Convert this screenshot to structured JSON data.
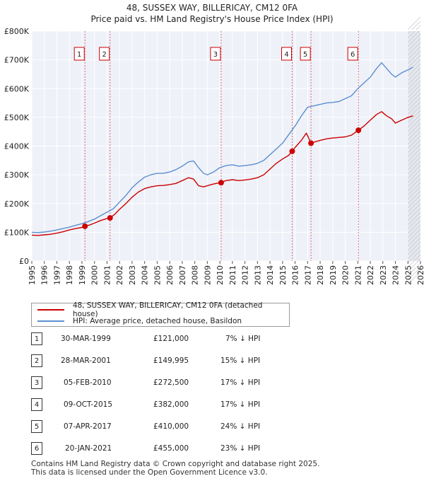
{
  "chart_data": {
    "type": "line",
    "title": "48, SUSSEX WAY, BILLERICAY, CM12 0FA",
    "subtitle": "Price paid vs. HM Land Registry's House Price Index (HPI)",
    "xlabel": "",
    "ylabel": "",
    "xlim": [
      1995,
      2026
    ],
    "ylim": [
      0,
      800000
    ],
    "y_ticks": [
      0,
      100000,
      200000,
      300000,
      400000,
      500000,
      600000,
      700000,
      800000
    ],
    "y_tick_labels": [
      "£0",
      "£100K",
      "£200K",
      "£300K",
      "£400K",
      "£500K",
      "£600K",
      "£700K",
      "£800K"
    ],
    "x_ticks": [
      1995,
      1996,
      1997,
      1998,
      1999,
      2000,
      2001,
      2002,
      2003,
      2004,
      2005,
      2006,
      2007,
      2008,
      2009,
      2010,
      2011,
      2012,
      2013,
      2014,
      2015,
      2016,
      2017,
      2018,
      2019,
      2020,
      2021,
      2022,
      2023,
      2024,
      2025,
      2026
    ],
    "x_tick_labels": [
      "1995",
      "1996",
      "1997",
      "1998",
      "1999",
      "2000",
      "2001",
      "2002",
      "2003",
      "2004",
      "2005",
      "2006",
      "2007",
      "2008",
      "2009",
      "2010",
      "2011",
      "2012",
      "2013",
      "2014",
      "2015",
      "2016",
      "2017",
      "2018",
      "2019",
      "2020",
      "2021",
      "2022",
      "2023",
      "2024",
      "2025",
      "2026"
    ],
    "grid": true,
    "series": [
      {
        "name": "48, SUSSEX WAY, BILLERICAY, CM12 0FA (detached house)",
        "color": "#cc0000",
        "x": [
          1995.0,
          1995.5,
          1996.0,
          1996.5,
          1997.0,
          1997.5,
          1998.0,
          1998.5,
          1999.0,
          1999.24,
          1999.6,
          2000.0,
          2000.5,
          2001.0,
          2001.24,
          2001.6,
          2002.0,
          2002.5,
          2003.0,
          2003.5,
          2004.0,
          2004.5,
          2005.0,
          2005.5,
          2006.0,
          2006.5,
          2007.0,
          2007.5,
          2007.9,
          2008.3,
          2008.7,
          2009.0,
          2009.5,
          2010.0,
          2010.1,
          2010.5,
          2011.0,
          2011.5,
          2012.0,
          2012.5,
          2013.0,
          2013.5,
          2014.0,
          2014.5,
          2015.0,
          2015.5,
          2015.77,
          2016.0,
          2016.5,
          2016.9,
          2017.27,
          2017.6,
          2018.0,
          2018.5,
          2019.0,
          2019.5,
          2020.0,
          2020.5,
          2021.05,
          2021.5,
          2022.0,
          2022.5,
          2022.9,
          2023.3,
          2023.7,
          2024.0,
          2024.5,
          2025.0,
          2025.4
        ],
        "values": [
          90000,
          89000,
          91000,
          93000,
          97000,
          102000,
          108000,
          113000,
          117000,
          121000,
          125000,
          132000,
          141000,
          148000,
          149995,
          162000,
          180000,
          200000,
          222000,
          240000,
          252000,
          258000,
          262000,
          263000,
          266000,
          270000,
          280000,
          290000,
          285000,
          262000,
          258000,
          262000,
          268000,
          272500,
          274000,
          280000,
          283000,
          280000,
          282000,
          285000,
          290000,
          300000,
          320000,
          340000,
          355000,
          368000,
          382000,
          395000,
          420000,
          445000,
          410000,
          415000,
          420000,
          425000,
          428000,
          430000,
          432000,
          438000,
          455000,
          470000,
          490000,
          510000,
          520000,
          505000,
          495000,
          480000,
          490000,
          500000,
          505000
        ]
      },
      {
        "name": "HPI: Average price, detached house, Basildon",
        "color": "#5b8fd0",
        "x": [
          1995.0,
          1995.5,
          1996.0,
          1996.5,
          1997.0,
          1997.5,
          1998.0,
          1998.5,
          1999.0,
          1999.5,
          2000.0,
          2000.5,
          2001.0,
          2001.5,
          2002.0,
          2002.5,
          2003.0,
          2003.5,
          2004.0,
          2004.5,
          2005.0,
          2005.5,
          2006.0,
          2006.5,
          2007.0,
          2007.5,
          2007.9,
          2008.3,
          2008.7,
          2009.0,
          2009.5,
          2010.0,
          2010.5,
          2011.0,
          2011.5,
          2012.0,
          2012.5,
          2013.0,
          2013.5,
          2014.0,
          2014.5,
          2015.0,
          2015.5,
          2016.0,
          2016.5,
          2017.0,
          2017.5,
          2018.0,
          2018.5,
          2019.0,
          2019.5,
          2020.0,
          2020.5,
          2021.0,
          2021.5,
          2022.0,
          2022.5,
          2022.9,
          2023.3,
          2023.7,
          2024.0,
          2024.5,
          2025.0,
          2025.4
        ],
        "values": [
          100000,
          99000,
          101000,
          104000,
          108000,
          113000,
          118000,
          124000,
          130000,
          137000,
          146000,
          158000,
          170000,
          182000,
          205000,
          228000,
          255000,
          275000,
          292000,
          300000,
          305000,
          305000,
          310000,
          318000,
          330000,
          345000,
          348000,
          325000,
          305000,
          300000,
          310000,
          325000,
          332000,
          335000,
          330000,
          332000,
          335000,
          340000,
          350000,
          370000,
          390000,
          410000,
          440000,
          470000,
          505000,
          535000,
          540000,
          545000,
          550000,
          552000,
          555000,
          565000,
          575000,
          600000,
          620000,
          640000,
          670000,
          690000,
          670000,
          650000,
          640000,
          655000,
          665000,
          675000
        ]
      }
    ],
    "sale_markers": [
      {
        "label": "1",
        "x": 1999.24,
        "value": 121000
      },
      {
        "label": "2",
        "x": 2001.24,
        "value": 149995
      },
      {
        "label": "3",
        "x": 2010.1,
        "value": 272500
      },
      {
        "label": "4",
        "x": 2015.77,
        "value": 382000
      },
      {
        "label": "5",
        "x": 2017.27,
        "value": 410000
      },
      {
        "label": "6",
        "x": 2021.05,
        "value": 455000
      }
    ],
    "shaded_region": {
      "from": 2025.0,
      "to": 2026.0,
      "pattern": "hatched"
    }
  },
  "legend": {
    "property_label": "48, SUSSEX WAY, BILLERICAY, CM12 0FA (detached house)",
    "hpi_label": "HPI: Average price, detached house, Basildon",
    "property_color": "#cc0000",
    "hpi_color": "#5b8fd0"
  },
  "sales": [
    {
      "num": "1",
      "date": "30-MAR-1999",
      "price": "£121,000",
      "hpi": "7% ↓ HPI"
    },
    {
      "num": "2",
      "date": "28-MAR-2001",
      "price": "£149,995",
      "hpi": "15% ↓ HPI"
    },
    {
      "num": "3",
      "date": "05-FEB-2010",
      "price": "£272,500",
      "hpi": "17% ↓ HPI"
    },
    {
      "num": "4",
      "date": "09-OCT-2015",
      "price": "£382,000",
      "hpi": "17% ↓ HPI"
    },
    {
      "num": "5",
      "date": "07-APR-2017",
      "price": "£410,000",
      "hpi": "24% ↓ HPI"
    },
    {
      "num": "6",
      "date": "20-JAN-2021",
      "price": "£455,000",
      "hpi": "23% ↓ HPI"
    }
  ],
  "footer": {
    "line1": "Contains HM Land Registry data © Crown copyright and database right 2025.",
    "line2": "This data is licensed under the Open Government Licence v3.0."
  }
}
